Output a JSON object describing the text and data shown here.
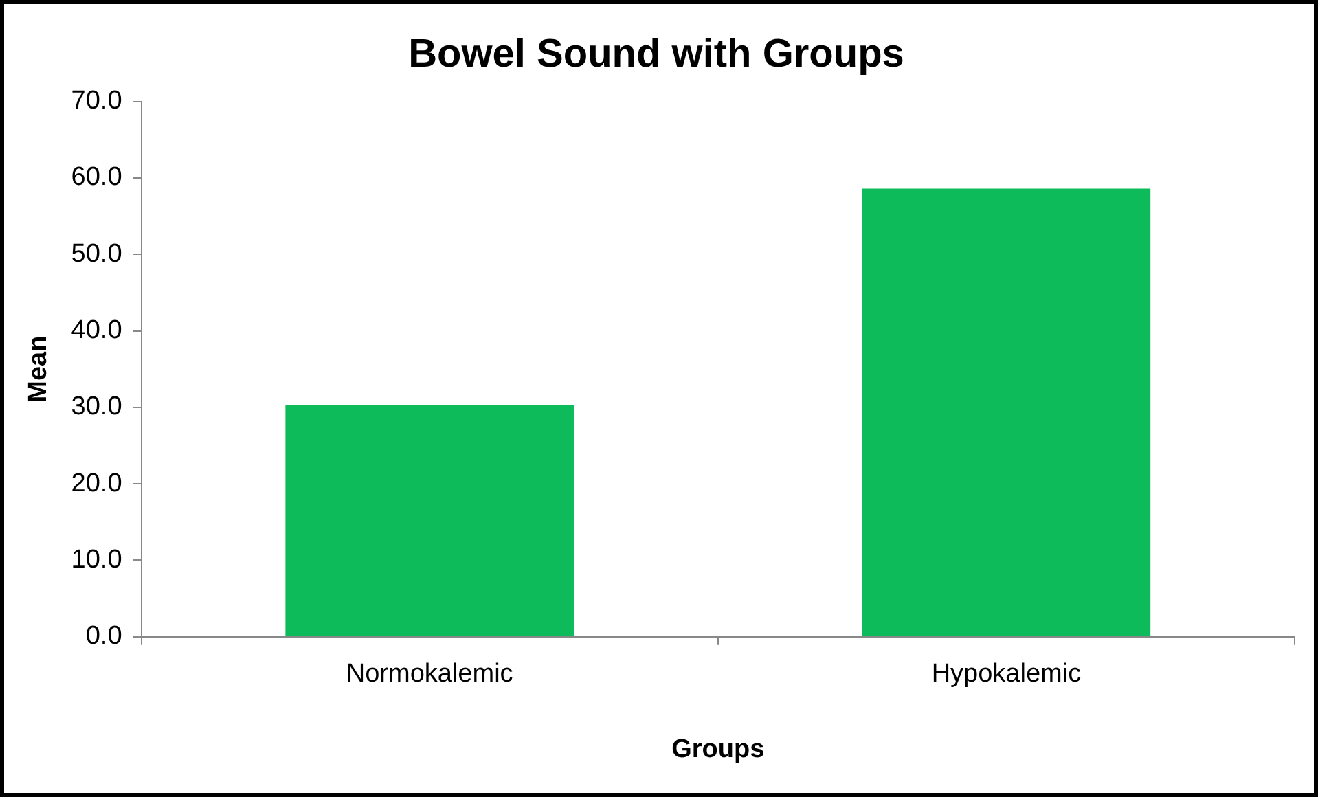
{
  "chart_data": {
    "type": "bar",
    "title": "Bowel Sound with Groups",
    "xlabel": "Groups",
    "ylabel": "Mean",
    "categories": [
      "Normokalemic",
      "Hypokalemic"
    ],
    "values": [
      30.3,
      58.6
    ],
    "color": "#0dbb5a",
    "ylim": [
      0,
      70
    ],
    "yticks": [
      {
        "value": 0,
        "label": "0.0"
      },
      {
        "value": 10,
        "label": "10.0"
      },
      {
        "value": 20,
        "label": "20.0"
      },
      {
        "value": 30,
        "label": "30.0"
      },
      {
        "value": 40,
        "label": "40.0"
      },
      {
        "value": 50,
        "label": "50.0"
      },
      {
        "value": 60,
        "label": "60.0"
      },
      {
        "value": 70,
        "label": "70.0"
      }
    ],
    "grid": false,
    "legend": false
  }
}
